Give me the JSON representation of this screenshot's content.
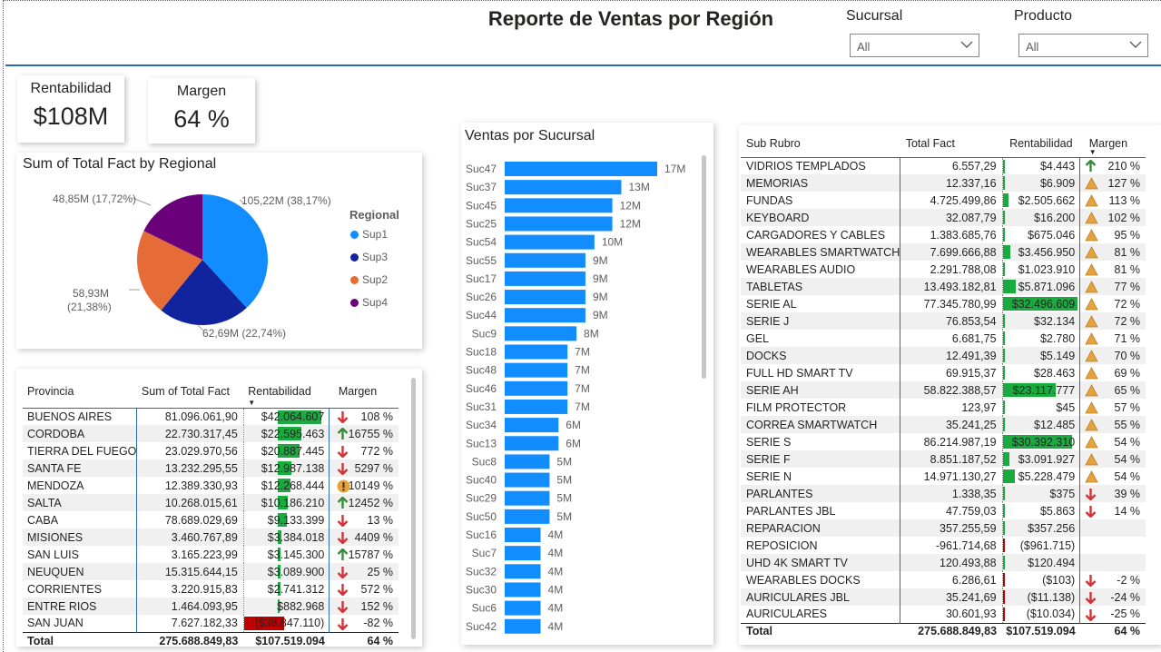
{
  "report_title": "Reporte de Ventas por Región",
  "slicers": [
    {
      "label": "Sucursal",
      "value": "All"
    },
    {
      "label": "Producto",
      "value": "All"
    }
  ],
  "cards": {
    "rentabilidad": {
      "label": "Rentabilidad",
      "value": "$108M"
    },
    "margen": {
      "label": "Margen",
      "value": "64 %"
    }
  },
  "pie": {
    "title": "Sum of Total Fact by Regional",
    "legend_title": "Regional",
    "labels": [
      "105,22M (38,17%)",
      "62,69M (22,74%)",
      "58,93M",
      "(21,38%)",
      "48,85M (17,72%)"
    ],
    "colors": {
      "Sup1": "#118dff",
      "Sup3": "#12239e",
      "Sup2": "#e66c37",
      "Sup4": "#6b007b"
    }
  },
  "chart_data": [
    {
      "type": "pie",
      "title": "Sum of Total Fact by Regional",
      "legend_title": "Regional",
      "categories": [
        "Sup1",
        "Sup3",
        "Sup2",
        "Sup4"
      ],
      "values": [
        105.22,
        62.69,
        58.93,
        48.85
      ],
      "percent": [
        38.17,
        22.74,
        21.38,
        17.72
      ],
      "unit": "M",
      "legend": "right"
    },
    {
      "type": "bar",
      "orientation": "horizontal",
      "title": "Ventas por Sucursal",
      "categories": [
        "Suc47",
        "Suc37",
        "Suc45",
        "Suc25",
        "Suc54",
        "Suc55",
        "Suc17",
        "Suc26",
        "Suc44",
        "Suc9",
        "Suc18",
        "Suc48",
        "Suc46",
        "Suc31",
        "Suc34",
        "Suc13",
        "Suc8",
        "Suc40",
        "Suc29",
        "Suc50",
        "Suc16",
        "Suc7",
        "Suc32",
        "Suc30",
        "Suc6",
        "Suc42"
      ],
      "values": [
        17,
        13,
        12,
        12,
        10,
        9,
        9,
        9,
        9,
        8,
        7,
        7,
        7,
        7,
        6,
        6,
        5,
        5,
        5,
        5,
        4,
        4,
        4,
        4,
        4,
        4
      ],
      "value_labels": [
        "17M",
        "13M",
        "12M",
        "12M",
        "10M",
        "9M",
        "9M",
        "9M",
        "9M",
        "8M",
        "7M",
        "7M",
        "7M",
        "7M",
        "6M",
        "6M",
        "5M",
        "5M",
        "5M",
        "5M",
        "4M",
        "4M",
        "4M",
        "4M",
        "4M",
        "4M"
      ],
      "bar_color": "#118dff"
    }
  ],
  "provincia_table": {
    "headers": [
      "Provincia",
      "Sum of Total Fact",
      "Rentabilidad",
      "Margen"
    ],
    "rows": [
      {
        "name": "BUENOS AIRES",
        "total": "81.096.061,90",
        "rent": "$42.064.607",
        "rent_num": 42064607,
        "icon": "down",
        "margen": "108 %"
      },
      {
        "name": "CORDOBA",
        "total": "22.730.317,45",
        "rent": "$22.595.463",
        "rent_num": 22595463,
        "icon": "up",
        "margen": "16755 %"
      },
      {
        "name": "TIERRA DEL FUEGO",
        "total": "23.029.970,56",
        "rent": "$20.887.445",
        "rent_num": 20887445,
        "icon": "down",
        "margen": "772 %"
      },
      {
        "name": "SANTA FE",
        "total": "13.232.295,55",
        "rent": "$12.987.138",
        "rent_num": 12987138,
        "icon": "down",
        "margen": "5297 %"
      },
      {
        "name": "MENDOZA",
        "total": "12.389.330,93",
        "rent": "$12.268.444",
        "rent_num": 12268444,
        "icon": "warn",
        "margen": "10149 %"
      },
      {
        "name": "SALTA",
        "total": "10.268.015,61",
        "rent": "$10.186.210",
        "rent_num": 10186210,
        "icon": "up",
        "margen": "12452 %"
      },
      {
        "name": "CABA",
        "total": "78.689.029,69",
        "rent": "$9.133.399",
        "rent_num": 9133399,
        "icon": "down",
        "margen": "13 %"
      },
      {
        "name": "MISIONES",
        "total": "3.460.767,89",
        "rent": "$3.384.018",
        "rent_num": 3384018,
        "icon": "down",
        "margen": "4409 %"
      },
      {
        "name": "SAN LUIS",
        "total": "3.165.223,99",
        "rent": "$3.145.300",
        "rent_num": 3145300,
        "icon": "up",
        "margen": "15787 %"
      },
      {
        "name": "NEUQUEN",
        "total": "15.315.644,15",
        "rent": "$3.089.900",
        "rent_num": 3089900,
        "icon": "down",
        "margen": "25 %"
      },
      {
        "name": "CORRIENTES",
        "total": "3.220.915,83",
        "rent": "$2.741.312",
        "rent_num": 2741312,
        "icon": "down",
        "margen": "572 %"
      },
      {
        "name": "ENTRE RIOS",
        "total": "1.464.093,95",
        "rent": "$882.968",
        "rent_num": 882968,
        "icon": "down",
        "margen": "152 %"
      },
      {
        "name": "SAN JUAN",
        "total": "7.627.182,33",
        "rent": "($38.847.110)",
        "rent_num": -38847110,
        "icon": "down",
        "margen": "-82 %"
      }
    ],
    "total": {
      "name": "Total",
      "total": "275.688.849,83",
      "rent": "$107.519.094",
      "margen": "64 %"
    }
  },
  "bar_chart": {
    "title": "Ventas por Sucursal"
  },
  "subrubro_table": {
    "headers": [
      "Sub Rubro",
      "Total Fact",
      "Rentabilidad",
      "Margen"
    ],
    "rows": [
      {
        "name": "VIDRIOS TEMPLADOS",
        "total": "6.557,29",
        "rent": "$4.443",
        "rent_num": 4443,
        "icon": "up",
        "margen": "210 %"
      },
      {
        "name": "MEMORIAS",
        "total": "12.337,16",
        "rent": "$6.909",
        "rent_num": 6909,
        "icon": "tri",
        "margen": "127 %"
      },
      {
        "name": "FUNDAS",
        "total": "4.725.499,86",
        "rent": "$2.505.662",
        "rent_num": 2505662,
        "icon": "tri",
        "margen": "113 %"
      },
      {
        "name": "KEYBOARD",
        "total": "32.087,79",
        "rent": "$16.200",
        "rent_num": 16200,
        "icon": "tri",
        "margen": "102 %"
      },
      {
        "name": "CARGADORES Y CABLES",
        "total": "1.383.685,76",
        "rent": "$675.046",
        "rent_num": 675046,
        "icon": "tri",
        "margen": "95 %"
      },
      {
        "name": "WEARABLES SMARTWATCH",
        "total": "7.699.666,88",
        "rent": "$3.456.950",
        "rent_num": 3456950,
        "icon": "tri",
        "margen": "81 %"
      },
      {
        "name": "WEARABLES AUDIO",
        "total": "2.291.788,08",
        "rent": "$1.023.910",
        "rent_num": 1023910,
        "icon": "tri",
        "margen": "81 %"
      },
      {
        "name": "TABLETAS",
        "total": "13.493.182,81",
        "rent": "$5.871.096",
        "rent_num": 5871096,
        "icon": "tri",
        "margen": "77 %"
      },
      {
        "name": "SERIE AL",
        "total": "77.345.780,99",
        "rent": "$32.496.609",
        "rent_num": 32496609,
        "icon": "tri",
        "margen": "72 %"
      },
      {
        "name": "SERIE J",
        "total": "76.853,54",
        "rent": "$32.134",
        "rent_num": 32134,
        "icon": "tri",
        "margen": "72 %"
      },
      {
        "name": "GEL",
        "total": "6.681,75",
        "rent": "$2.780",
        "rent_num": 2780,
        "icon": "tri",
        "margen": "71 %"
      },
      {
        "name": "DOCKS",
        "total": "12.491,39",
        "rent": "$5.149",
        "rent_num": 5149,
        "icon": "tri",
        "margen": "70 %"
      },
      {
        "name": "FULL HD SMART TV",
        "total": "69.915,37",
        "rent": "$28.463",
        "rent_num": 28463,
        "icon": "tri",
        "margen": "69 %"
      },
      {
        "name": "SERIE AH",
        "total": "58.822.388,57",
        "rent": "$23.117.777",
        "rent_num": 23117777,
        "icon": "tri",
        "margen": "65 %"
      },
      {
        "name": "FILM PROTECTOR",
        "total": "123,97",
        "rent": "$45",
        "rent_num": 45,
        "icon": "tri",
        "margen": "57 %"
      },
      {
        "name": "CORREA SMARTWATCH",
        "total": "35.241,25",
        "rent": "$12.485",
        "rent_num": 12485,
        "icon": "tri",
        "margen": "55 %"
      },
      {
        "name": "SERIE S",
        "total": "86.214.987,19",
        "rent": "$30.392.310",
        "rent_num": 30392310,
        "icon": "tri",
        "margen": "54 %"
      },
      {
        "name": "SERIE F",
        "total": "8.851.187,52",
        "rent": "$3.091.927",
        "rent_num": 3091927,
        "icon": "tri",
        "margen": "54 %"
      },
      {
        "name": "SERIE N",
        "total": "14.971.130,27",
        "rent": "$5.228.479",
        "rent_num": 5228479,
        "icon": "tri",
        "margen": "54 %"
      },
      {
        "name": "PARLANTES",
        "total": "1.338,35",
        "rent": "$375",
        "rent_num": 375,
        "icon": "down",
        "margen": "39 %"
      },
      {
        "name": "PARLANTES JBL",
        "total": "47.759,03",
        "rent": "$5.863",
        "rent_num": 5863,
        "icon": "down",
        "margen": "14 %"
      },
      {
        "name": "REPARACION",
        "total": "357.255,59",
        "rent": "$357.256",
        "rent_num": 357256,
        "icon": "",
        "margen": ""
      },
      {
        "name": "REPOSICION",
        "total": "-961.714,68",
        "rent": "($961.715)",
        "rent_num": -961715,
        "icon": "",
        "margen": ""
      },
      {
        "name": "UHD 4K SMART TV",
        "total": "120.493,88",
        "rent": "$120.494",
        "rent_num": 120494,
        "icon": "",
        "margen": ""
      },
      {
        "name": "WEARABLES DOCKS",
        "total": "6.286,61",
        "rent": "($103)",
        "rent_num": -103,
        "icon": "down",
        "margen": "-2 %"
      },
      {
        "name": "AURICULARES JBL",
        "total": "35.241,69",
        "rent": "($11.138)",
        "rent_num": -11138,
        "icon": "down",
        "margen": "-24 %"
      },
      {
        "name": "AURICULARES",
        "total": "30.601,93",
        "rent": "($10.034)",
        "rent_num": -10034,
        "icon": "down",
        "margen": "-25 %"
      }
    ],
    "total": {
      "name": "Total",
      "total": "275.688.849,83",
      "rent": "$107.519.094",
      "margen": "64 %"
    }
  }
}
